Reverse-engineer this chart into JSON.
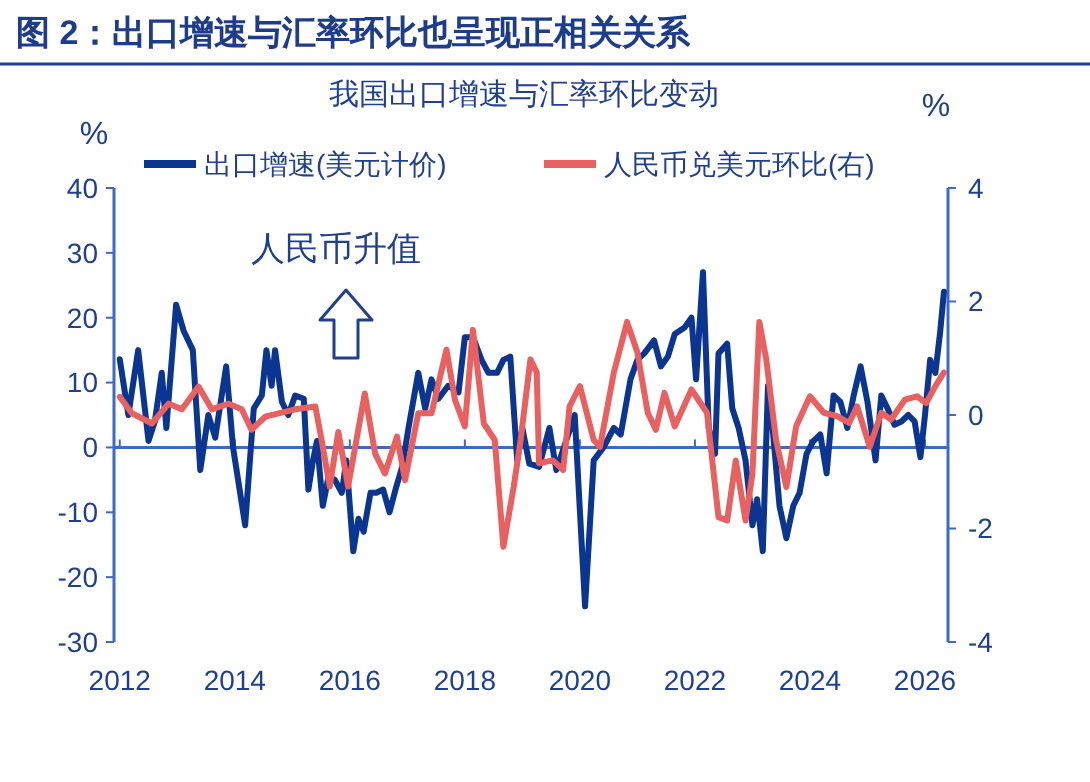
{
  "chart_data": {
    "type": "line",
    "title": "图 2：出口增速与汇率环比也呈现正相关关系",
    "subtitle": "我国出口增速与汇率环比变动",
    "ylabel": "%",
    "y2label": "%",
    "annotations": [
      "人民币升值"
    ],
    "legend": "top",
    "ref_lines": [
      {
        "axis": "y",
        "value": 0,
        "color": "#3a6bc8"
      }
    ],
    "xlim": [
      2011.9,
      2026.4
    ],
    "xticks": [
      2012,
      2014,
      2016,
      2018,
      2020,
      2022,
      2024,
      2026
    ],
    "ylim": [
      -30,
      40
    ],
    "yticks": [
      -30,
      -20,
      -10,
      0,
      10,
      20,
      30,
      40
    ],
    "y2lim": [
      -4,
      4
    ],
    "y2ticks": [
      -4,
      -2,
      0,
      2,
      4
    ],
    "series": [
      {
        "name": "出口增速(美元计价)",
        "color": "#0a3591",
        "x": [
          2012.0,
          2012.15,
          2012.32,
          2012.5,
          2012.61,
          2012.73,
          2012.81,
          2012.98,
          2013.11,
          2013.27,
          2013.4,
          2013.54,
          2013.66,
          2013.85,
          2013.97,
          2014.18,
          2014.33,
          2014.47,
          2014.55,
          2014.64,
          2014.7,
          2014.82,
          2014.93,
          2015.05,
          2015.2,
          2015.28,
          2015.36,
          2015.43,
          2015.53,
          2015.63,
          2015.74,
          2015.86,
          2015.94,
          2016.06,
          2016.15,
          2016.24,
          2016.36,
          2016.46,
          2016.58,
          2016.69,
          2016.81,
          2016.91,
          2017.02,
          2017.19,
          2017.31,
          2017.42,
          2017.54,
          2017.71,
          2017.89,
          2018.0,
          2018.14,
          2018.29,
          2018.41,
          2018.56,
          2018.67,
          2018.79,
          2018.91,
          2019.0,
          2019.12,
          2019.29,
          2019.47,
          2019.59,
          2019.76,
          2019.91,
          2020.09,
          2020.24,
          2020.41,
          2020.59,
          2020.71,
          2020.88,
          2021.0,
          2021.12,
          2021.29,
          2021.41,
          2021.53,
          2021.65,
          2021.82,
          2021.94,
          2022.02,
          2022.14,
          2022.24,
          2022.35,
          2022.41,
          2022.56,
          2022.65,
          2022.76,
          2022.88,
          2023.0,
          2023.08,
          2023.18,
          2023.27,
          2023.35,
          2023.47,
          2023.59,
          2023.71,
          2023.82,
          2023.94,
          2024.06,
          2024.18,
          2024.29,
          2024.41,
          2024.53,
          2024.65,
          2024.76,
          2024.88,
          2025.0,
          2025.14,
          2025.24,
          2025.35,
          2025.47,
          2025.59,
          2025.71,
          2025.82,
          2025.92,
          2026.0,
          2026.09,
          2026.18,
          2026.26,
          2026.33
        ],
        "values": [
          13.6,
          5,
          15,
          1,
          4,
          11.5,
          3,
          22,
          18,
          15,
          -3.5,
          5,
          1.5,
          12.5,
          0,
          -12,
          6,
          8,
          15,
          9.5,
          15,
          7,
          5,
          8,
          7.5,
          -6.5,
          -2,
          1,
          -9,
          -4.5,
          -5,
          -7,
          -2,
          -16,
          -11,
          -13,
          -7,
          -7,
          -6.5,
          -10,
          -6,
          -3,
          3,
          11.5,
          6,
          10.5,
          7.5,
          9.5,
          8.5,
          17,
          17,
          13.5,
          11.5,
          11.5,
          13.5,
          14,
          -2,
          3,
          -2.5,
          -3,
          3,
          -3.5,
          1,
          5,
          -24.5,
          -2,
          0,
          3,
          2,
          10.5,
          13.5,
          14.5,
          16.5,
          12.5,
          14,
          17.5,
          18.5,
          20,
          10.5,
          27,
          3,
          -1,
          14.5,
          16,
          6,
          3,
          -2,
          -12,
          -8,
          -16,
          9.5,
          3,
          -9,
          -14,
          -9,
          -7,
          -1,
          1,
          2,
          -4,
          8,
          7,
          3,
          8,
          12.5,
          7,
          -2,
          8,
          6,
          3.5,
          4,
          5,
          4,
          -1.5,
          5,
          13.5,
          11.5,
          17.5,
          24
        ]
      },
      {
        "name": "人民币兑美元环比(右)",
        "color": "#e8605f",
        "axis": "y2",
        "x": [
          2012.0,
          2012.21,
          2012.56,
          2012.85,
          2013.08,
          2013.37,
          2013.6,
          2013.89,
          2014.12,
          2014.29,
          2014.53,
          2014.76,
          2015.05,
          2015.4,
          2015.51,
          2015.65,
          2015.8,
          2015.97,
          2016.26,
          2016.44,
          2016.61,
          2016.82,
          2016.96,
          2017.19,
          2017.42,
          2017.68,
          2017.83,
          2018.0,
          2018.14,
          2018.33,
          2018.52,
          2018.67,
          2018.85,
          2018.97,
          2019.14,
          2019.25,
          2019.29,
          2019.53,
          2019.71,
          2019.82,
          2020.0,
          2020.24,
          2020.35,
          2020.59,
          2020.82,
          2021.0,
          2021.18,
          2021.32,
          2021.47,
          2021.65,
          2021.94,
          2022.21,
          2022.41,
          2022.56,
          2022.71,
          2022.88,
          2023.0,
          2023.12,
          2023.24,
          2023.41,
          2023.59,
          2023.76,
          2024.0,
          2024.24,
          2024.47,
          2024.68,
          2024.82,
          2025.04,
          2025.24,
          2025.41,
          2025.65,
          2025.86,
          2026.02,
          2026.18,
          2026.33
        ],
        "values": [
          0.32,
          0.03,
          -0.15,
          0.2,
          0.1,
          0.5,
          0.1,
          0.2,
          0.1,
          -0.26,
          -0.03,
          0.03,
          0.1,
          0.15,
          -0.44,
          -1.26,
          -0.3,
          -1.26,
          0.38,
          -0.68,
          -1.03,
          -0.38,
          -1.15,
          0.03,
          0.03,
          1.15,
          0.26,
          -0.2,
          1.5,
          -0.15,
          -0.44,
          -2.32,
          -1.26,
          -0.44,
          0.98,
          0.75,
          -0.85,
          -0.8,
          -0.97,
          0.15,
          0.51,
          -0.44,
          -0.56,
          0.75,
          1.64,
          1.1,
          0.04,
          -0.26,
          0.39,
          -0.2,
          0.45,
          0.04,
          -1.8,
          -1.86,
          -0.8,
          -1.86,
          -1.03,
          1.64,
          0.98,
          -0.44,
          -1.27,
          -0.2,
          0.33,
          0.04,
          -0.02,
          -0.14,
          0.15,
          -0.56,
          0.04,
          -0.08,
          0.27,
          0.33,
          0.21,
          0.51,
          0.75
        ]
      }
    ]
  }
}
